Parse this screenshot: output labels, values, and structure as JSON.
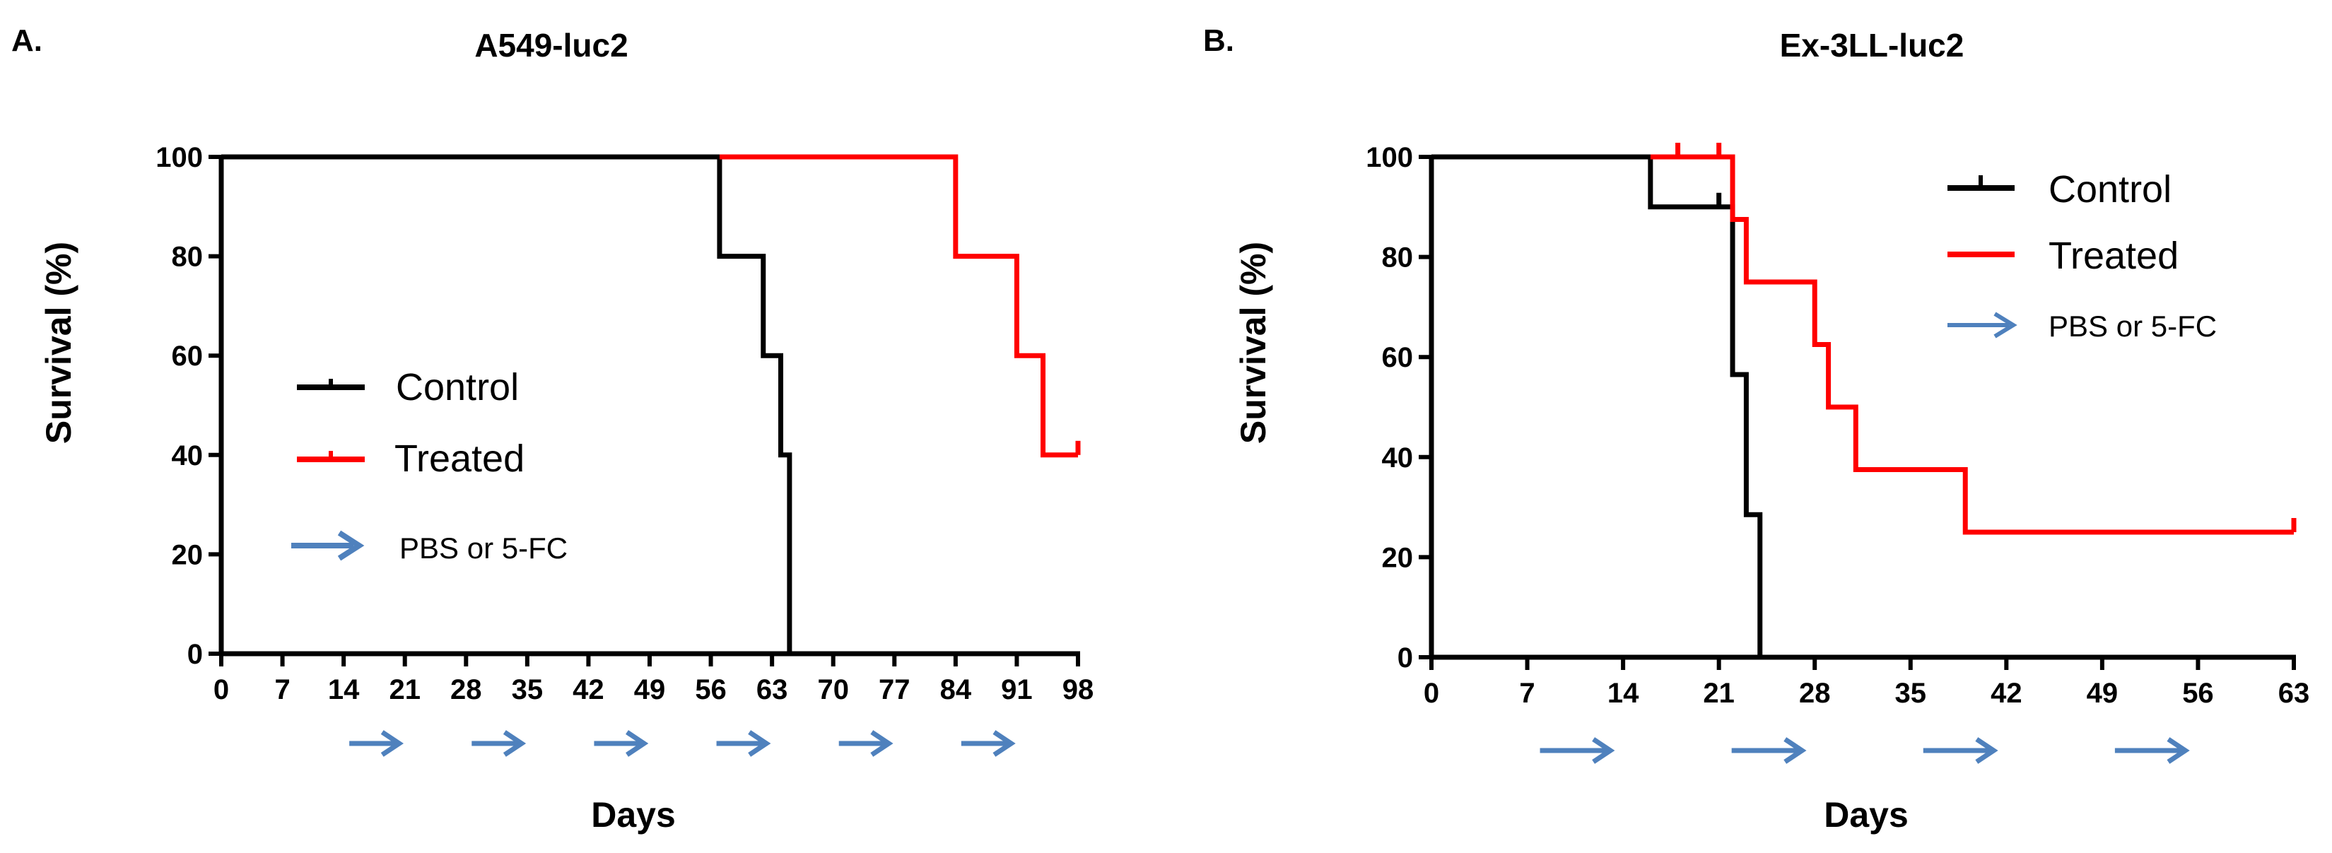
{
  "chart_data": [
    {
      "type": "line",
      "panel_label": "A.",
      "title": "A549-luc2",
      "xlabel": "Days",
      "ylabel": "Survival  (%)",
      "xlim": [
        0,
        98
      ],
      "ylim": [
        0,
        100
      ],
      "xticks": [
        "0",
        "7",
        "14",
        "21",
        "28",
        "35",
        "42",
        "49",
        "56",
        "63",
        "70",
        "77",
        "84",
        "91",
        "98"
      ],
      "yticks": [
        "0",
        "20",
        "40",
        "60",
        "80",
        "100"
      ],
      "legend": {
        "position": "center-left",
        "entries": [
          "Control",
          "Treated",
          "PBS or 5-FC"
        ]
      },
      "series": [
        {
          "name": "Control",
          "color": "#000000",
          "step": true,
          "x": [
            0,
            57,
            57,
            62,
            62,
            64,
            64,
            65,
            65
          ],
          "y": [
            100,
            100,
            80,
            80,
            60,
            60,
            40,
            40,
            0
          ],
          "censor": []
        },
        {
          "name": "Treated",
          "color": "#ff0000",
          "step": true,
          "x": [
            57,
            84,
            84,
            91,
            91,
            94,
            94,
            98
          ],
          "y": [
            100,
            100,
            80,
            80,
            60,
            60,
            40,
            40
          ],
          "censor": [
            [
              98,
              40
            ]
          ]
        }
      ],
      "treatment_arrows": {
        "label": "PBS or 5-FC",
        "color": "#4f81bd",
        "intervals": [
          [
            14,
            21
          ],
          [
            28,
            35
          ],
          [
            42,
            49
          ],
          [
            56,
            63
          ],
          [
            70,
            77
          ],
          [
            84,
            91
          ]
        ]
      }
    },
    {
      "type": "line",
      "panel_label": "B.",
      "title": "Ex-3LL-luc2",
      "xlabel": "Days",
      "ylabel": "Survival  (%)",
      "xlim": [
        0,
        63
      ],
      "ylim": [
        0,
        100
      ],
      "xticks": [
        "0",
        "7",
        "14",
        "21",
        "28",
        "35",
        "42",
        "49",
        "56",
        "63"
      ],
      "yticks": [
        "0",
        "20",
        "40",
        "60",
        "80",
        "100"
      ],
      "legend": {
        "position": "top-right",
        "entries": [
          "Control",
          "Treated",
          "PBS or 5-FC"
        ]
      },
      "series": [
        {
          "name": "Control",
          "color": "#000000",
          "step": true,
          "x": [
            0,
            16,
            16,
            22,
            22,
            23,
            23,
            24,
            24
          ],
          "y": [
            100,
            100,
            90,
            90,
            56.5,
            56.5,
            28.5,
            28.5,
            0
          ],
          "censor": [
            [
              21,
              90
            ]
          ]
        },
        {
          "name": "Treated",
          "color": "#ff0000",
          "step": true,
          "x": [
            16,
            22,
            22,
            23,
            23,
            28,
            28,
            29,
            29,
            31,
            31,
            39,
            39,
            63
          ],
          "y": [
            100,
            100,
            87.5,
            87.5,
            75,
            75,
            62.5,
            62.5,
            50,
            50,
            37.5,
            37.5,
            25,
            25
          ],
          "censor": [
            [
              18,
              100
            ],
            [
              21,
              100
            ],
            [
              63,
              25
            ]
          ]
        }
      ],
      "treatment_arrows": {
        "label": "PBS or 5-FC",
        "color": "#4f81bd",
        "intervals": [
          [
            7,
            14
          ],
          [
            21,
            28
          ],
          [
            35,
            42
          ],
          [
            49,
            56
          ]
        ]
      }
    }
  ]
}
